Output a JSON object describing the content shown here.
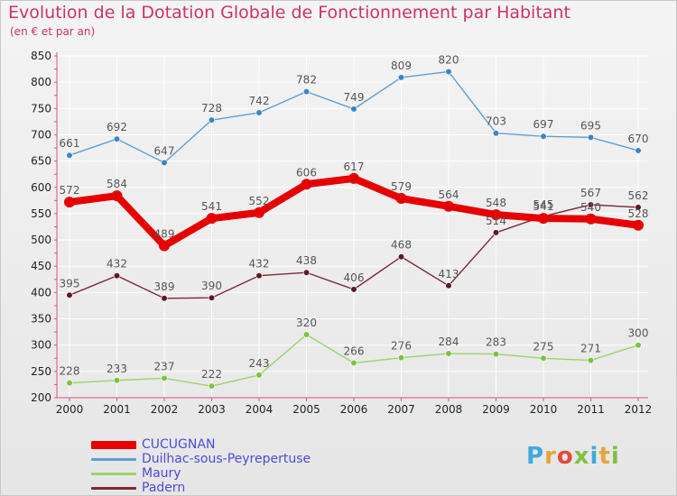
{
  "header": {
    "title": "Evolution de la Dotation Globale de Fonctionnement par Habitant",
    "subtitle": "(en € et par an)"
  },
  "logo": {
    "text": "Proxiti",
    "letter_colors": [
      "#3fa9dc",
      "#e8a33a",
      "#e24a3b",
      "#7dc242",
      "#3fa9dc",
      "#e8a33a",
      "#7dc242"
    ]
  },
  "colors": {
    "axis": "#e05080",
    "grid": "#ffffff",
    "value_label": "#555555",
    "tick_label": "#222222"
  },
  "chart_data": {
    "type": "line",
    "title": "Evolution de la Dotation Globale de Fonctionnement par Habitant",
    "subtitle": "(en € et par an)",
    "xlabel": "",
    "ylabel": "",
    "x": [
      "2000",
      "2001",
      "2002",
      "2003",
      "2004",
      "2005",
      "2006",
      "2007",
      "2008",
      "2009",
      "2010",
      "2011",
      "2012"
    ],
    "ylim": [
      200,
      850
    ],
    "yticks": [
      200,
      250,
      300,
      350,
      400,
      450,
      500,
      550,
      600,
      650,
      700,
      750,
      800,
      850
    ],
    "grid": true,
    "legend_position": "bottom-left",
    "series": [
      {
        "name": "CUCUGNAN",
        "color": "#e60000",
        "marker_color": "#e60000",
        "highlight": true,
        "values": [
          572,
          584,
          489,
          541,
          552,
          606,
          617,
          579,
          564,
          548,
          541,
          540,
          528
        ]
      },
      {
        "name": "Duilhac-sous-Peyrepertuse",
        "color": "#5a9fd4",
        "marker_color": "#3c84c8",
        "highlight": false,
        "values": [
          661,
          692,
          647,
          728,
          742,
          782,
          749,
          809,
          820,
          703,
          697,
          695,
          670
        ]
      },
      {
        "name": "Maury",
        "color": "#9ad46a",
        "marker_color": "#7cc242",
        "highlight": false,
        "values": [
          228,
          233,
          237,
          222,
          243,
          320,
          266,
          276,
          284,
          283,
          275,
          271,
          300
        ]
      },
      {
        "name": "Padern",
        "color": "#7a2a35",
        "marker_color": "#5e1a24",
        "highlight": false,
        "values": [
          395,
          432,
          389,
          390,
          432,
          438,
          406,
          468,
          413,
          514,
          545,
          567,
          562
        ]
      }
    ]
  }
}
